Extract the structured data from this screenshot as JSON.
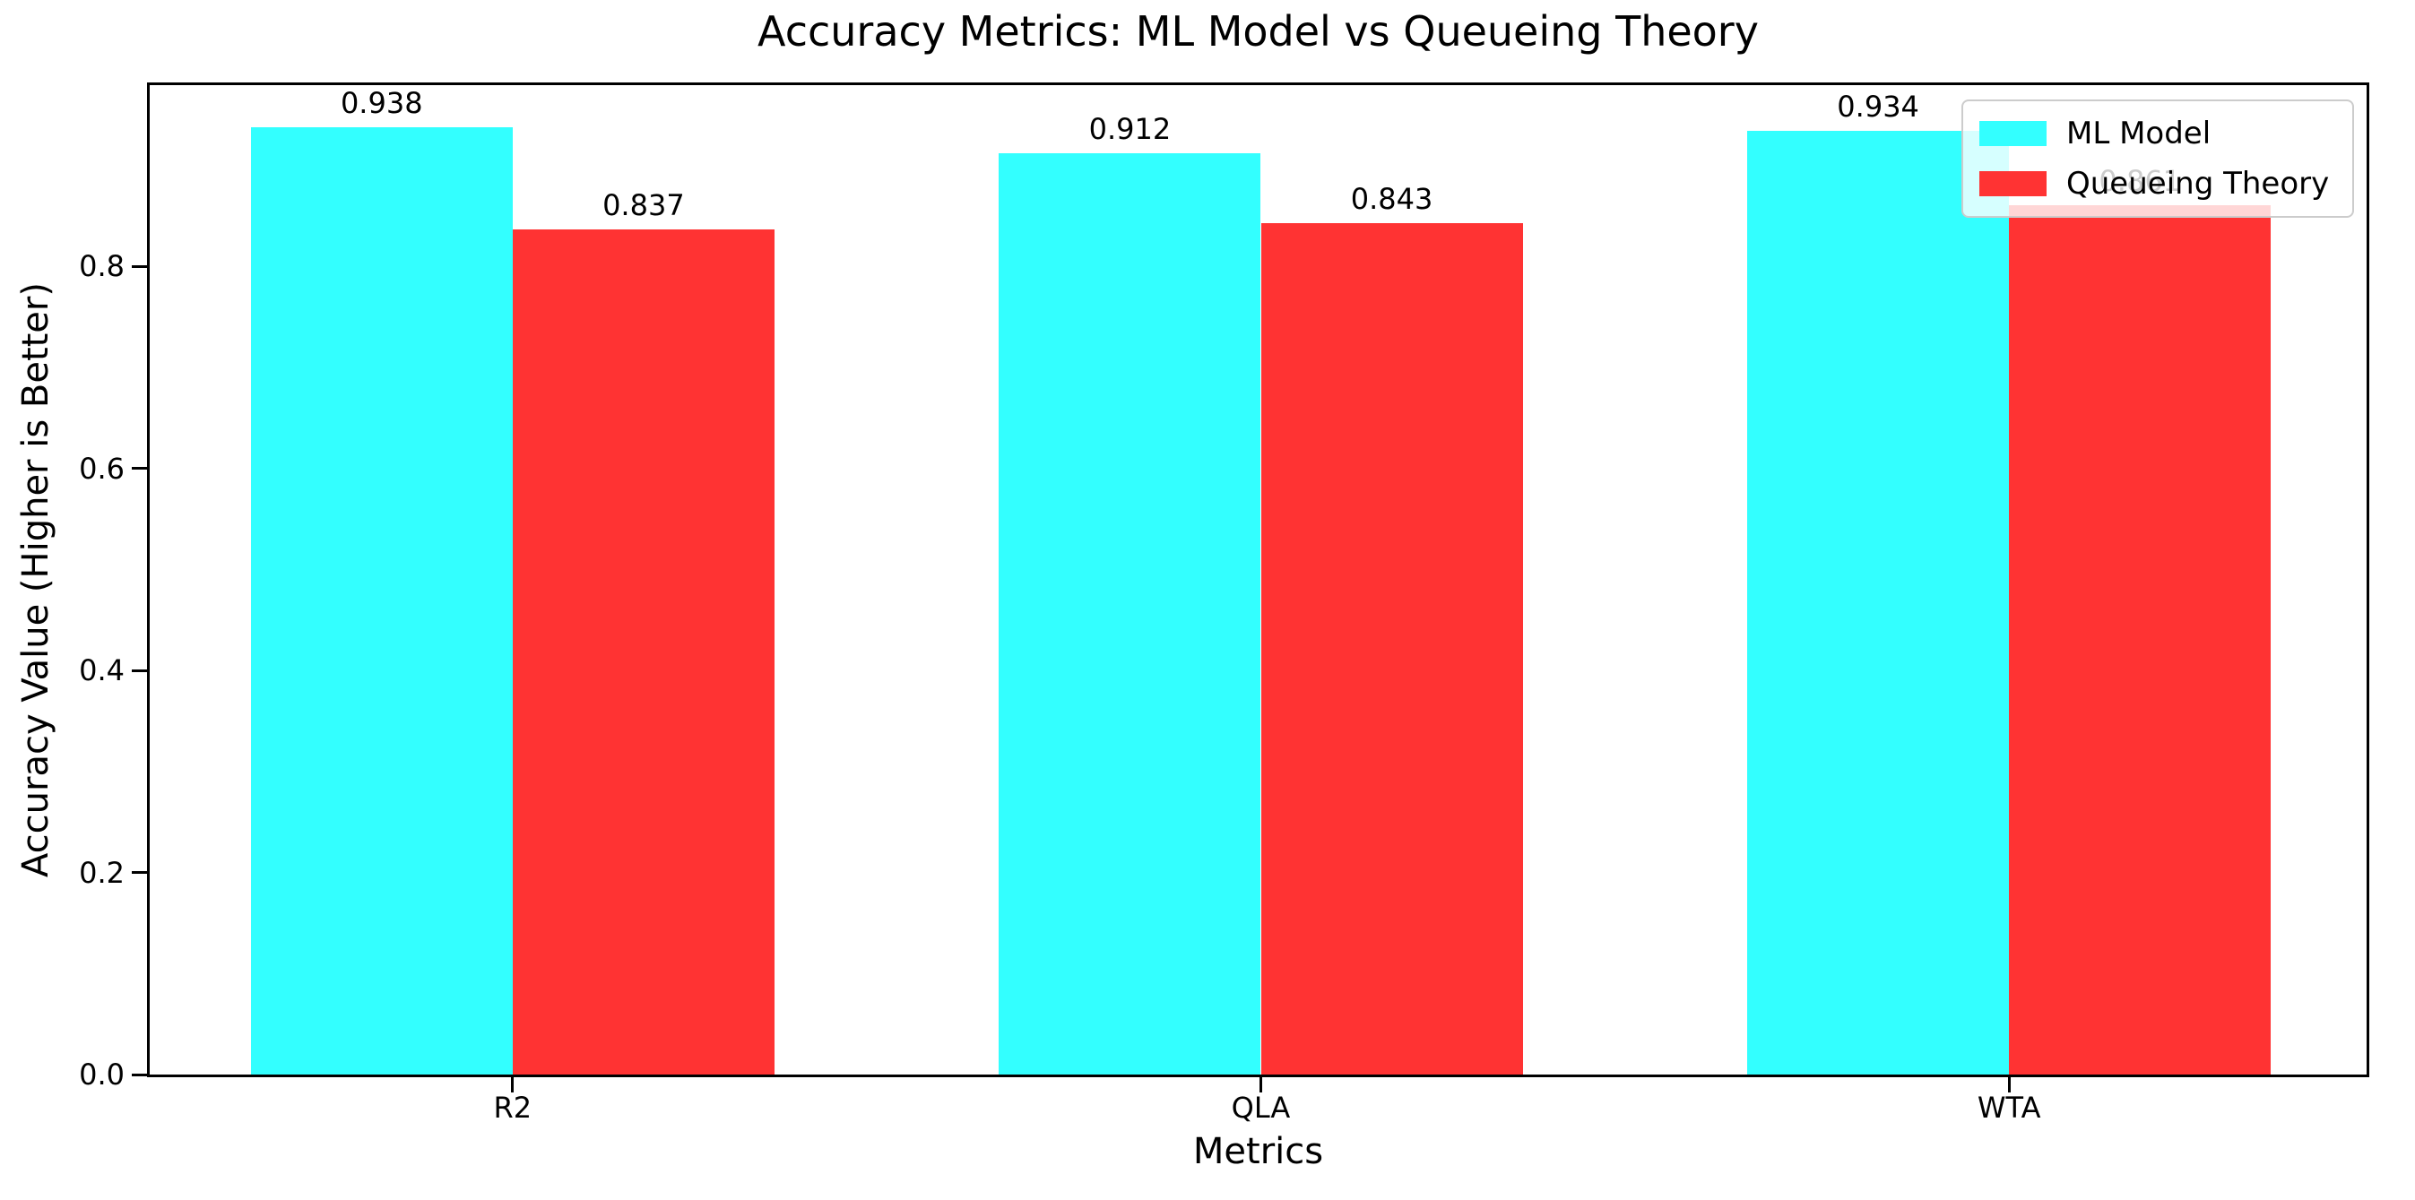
{
  "title": "Accuracy Metrics: ML Model vs Queueing Theory",
  "chart_data": {
    "type": "bar",
    "title": "Accuracy Metrics: ML Model vs Queueing Theory",
    "categories": [
      "R2",
      "QLA",
      "WTA"
    ],
    "series": [
      {
        "name": "ML Model",
        "color": "#33ffff",
        "values": [
          0.938,
          0.912,
          0.934
        ]
      },
      {
        "name": "Queueing Theory",
        "color": "#ff3333",
        "values": [
          0.837,
          0.843,
          0.861
        ]
      }
    ],
    "bar_value_labels": [
      "0.938",
      "0.837",
      "0.912",
      "0.843",
      "0.934",
      "0.861"
    ],
    "xlabel": "Metrics",
    "ylabel": "Accuracy Value (Higher is Better)",
    "yticks": [
      0.0,
      0.2,
      0.4,
      0.6,
      0.8
    ],
    "ytick_labels": [
      "0.0",
      "0.2",
      "0.4",
      "0.6",
      "0.8"
    ],
    "ylim": [
      0,
      0.985
    ],
    "xlim": [
      -0.485,
      2.485
    ],
    "bar_width_units": 0.35,
    "grid": false,
    "legend_position": "upper right",
    "colors": {
      "ml_model": "#33ffff",
      "queueing_theory": "#ff3333",
      "legend_border": "#cccccc",
      "axis": "#000000"
    }
  }
}
